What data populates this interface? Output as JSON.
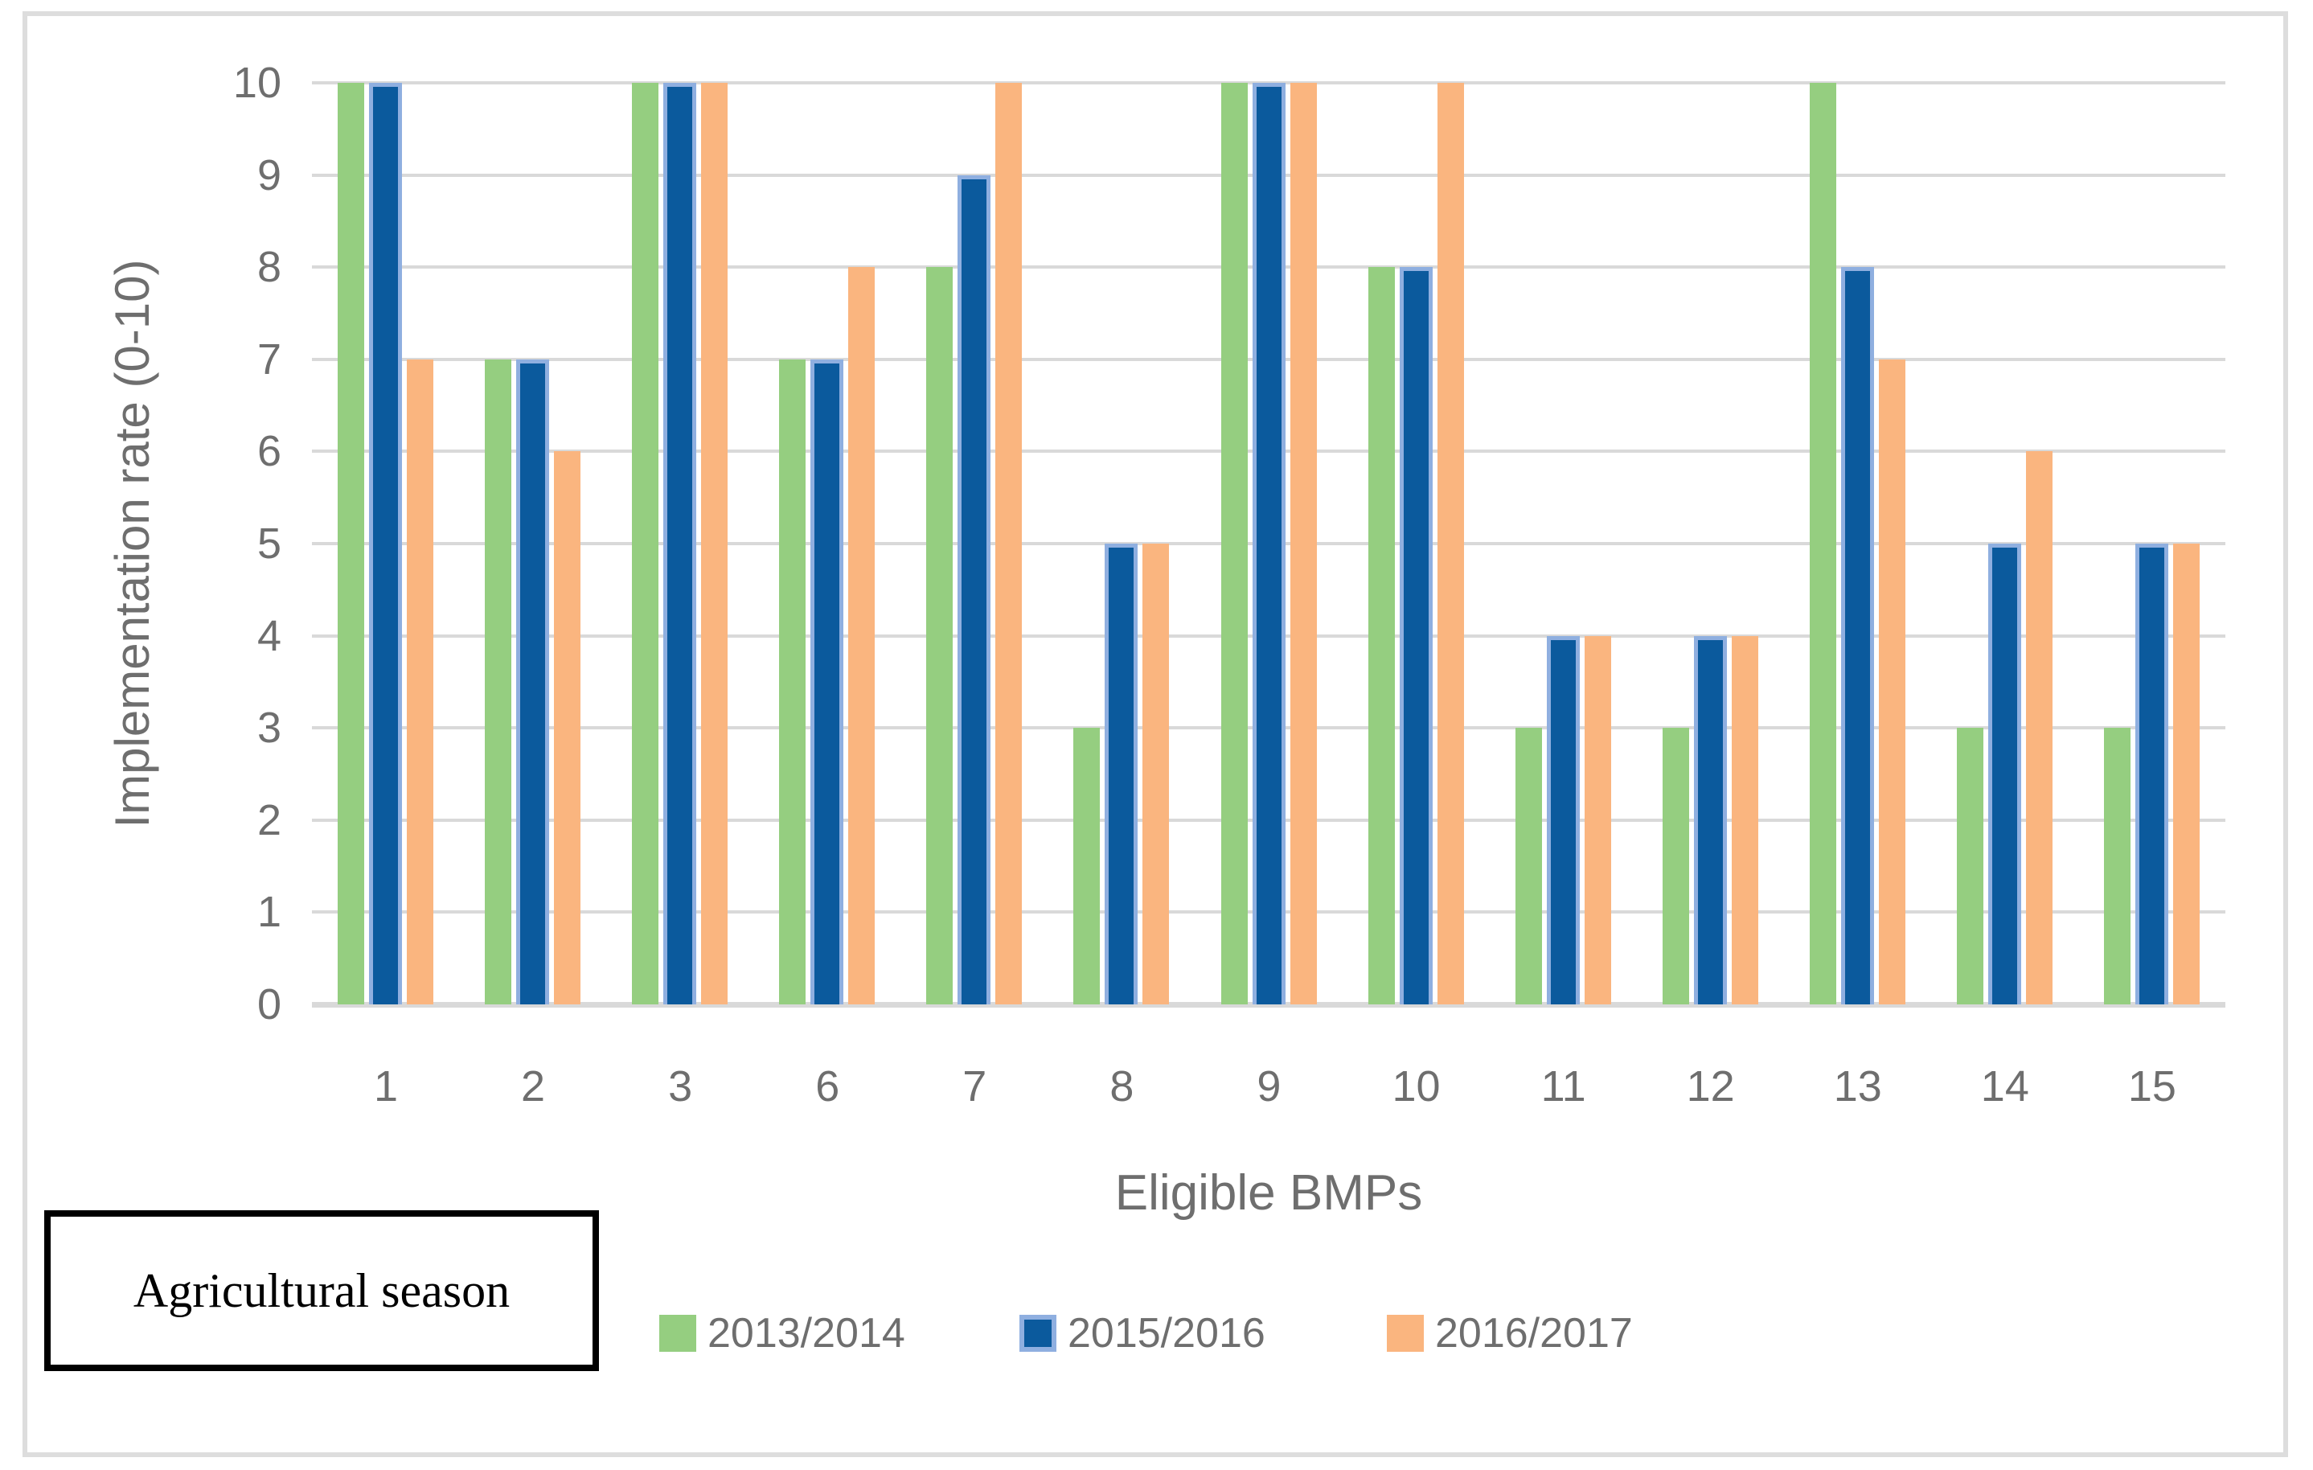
{
  "chart_data": {
    "type": "bar",
    "categories": [
      "1",
      "2",
      "3",
      "6",
      "7",
      "8",
      "9",
      "10",
      "11",
      "12",
      "13",
      "14",
      "15"
    ],
    "series": [
      {
        "name": "2013/2014",
        "color": "#95CE80",
        "values": [
          10,
          7,
          10,
          7,
          8,
          3,
          10,
          8,
          3,
          3,
          10,
          3,
          3
        ]
      },
      {
        "name": "2015/2016",
        "color": "#0B5A9D",
        "border_color": "#8FAFE0",
        "values": [
          10,
          7,
          10,
          7,
          9,
          5,
          10,
          8,
          4,
          4,
          8,
          5,
          5
        ]
      },
      {
        "name": "2016/2017",
        "color": "#FAB57F",
        "values": [
          7,
          6,
          10,
          8,
          10,
          5,
          10,
          10,
          4,
          4,
          7,
          6,
          5
        ]
      }
    ],
    "xlabel": "Eligible BMPs",
    "ylabel": "Implementation rate (0-10)",
    "ylim": [
      0,
      10
    ],
    "yticks": [
      0,
      1,
      2,
      3,
      4,
      5,
      6,
      7,
      8,
      9,
      10
    ],
    "grid": true,
    "legend_position": "bottom",
    "legend_title": "Agricultural season"
  },
  "style": {
    "chart_text_color": "#6E6E6E",
    "gridline_color": "#D9D9D9",
    "axis_line_color": "#D9D9D9",
    "frame_border_color": "#DDDDDD",
    "legend_box_border_color": "#000000",
    "background_color": "#FFFFFF"
  }
}
